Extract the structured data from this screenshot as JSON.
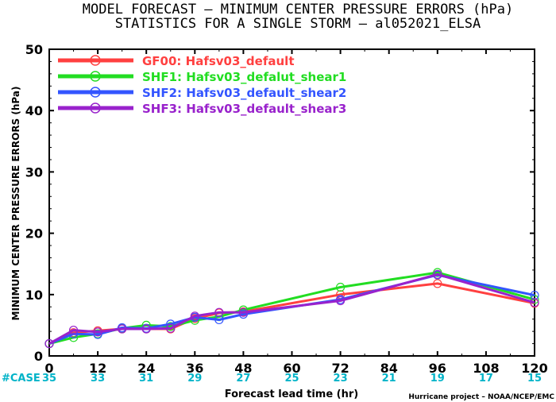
{
  "chart_data": {
    "type": "line",
    "title": "MODEL FORECAST – MINIMUM CENTER PRESSURE ERRORS (hPa)",
    "subtitle": "STATISTICS FOR A SINGLE STORM – al052021_ELSA",
    "xlabel": "Forecast lead time (hr)",
    "ylabel": "MINIMUM CENTER PRESSURE ERRORS (hPa)",
    "xlim": [
      0,
      120
    ],
    "ylim": [
      0,
      50
    ],
    "xticks": [
      0,
      12,
      24,
      36,
      48,
      60,
      72,
      84,
      96,
      108,
      120
    ],
    "yticks": [
      0,
      10,
      20,
      30,
      40,
      50
    ],
    "grid": false,
    "legend_position": "top-left",
    "case_label": "#CASE",
    "case_counts": [
      "35",
      "33",
      "31",
      "29",
      "27",
      "25",
      "23",
      "21",
      "19",
      "17",
      "15"
    ],
    "credit": "Hurricane project – NOAA/NCEP/EMC",
    "x": [
      0,
      6,
      12,
      18,
      24,
      30,
      36,
      42,
      48,
      72,
      96,
      120
    ],
    "series": [
      {
        "name": "GF00: Hafsv03_default",
        "color": "#ff4040",
        "values": [
          2.0,
          3.8,
          4.1,
          4.4,
          4.4,
          4.4,
          6.1,
          7.0,
          7.2,
          10.0,
          11.8,
          8.6
        ]
      },
      {
        "name": "SHF1: Hafsv03_defalut_shear1",
        "color": "#22dd22",
        "values": [
          2.0,
          3.0,
          3.6,
          4.5,
          5.0,
          4.8,
          5.8,
          6.4,
          7.5,
          11.2,
          13.6,
          9.2
        ]
      },
      {
        "name": "SHF2: Hafsv03_default_shear2",
        "color": "#3355ff",
        "values": [
          2.0,
          3.6,
          3.5,
          4.6,
          4.5,
          5.2,
          6.3,
          5.9,
          6.8,
          9.2,
          13.2,
          9.9
        ]
      },
      {
        "name": "SHF3: Hafsv03_default_shear3",
        "color": "#9922cc",
        "values": [
          2.0,
          4.2,
          3.9,
          4.4,
          4.4,
          4.5,
          6.5,
          7.1,
          7.1,
          9.0,
          13.3,
          8.7
        ]
      }
    ]
  }
}
